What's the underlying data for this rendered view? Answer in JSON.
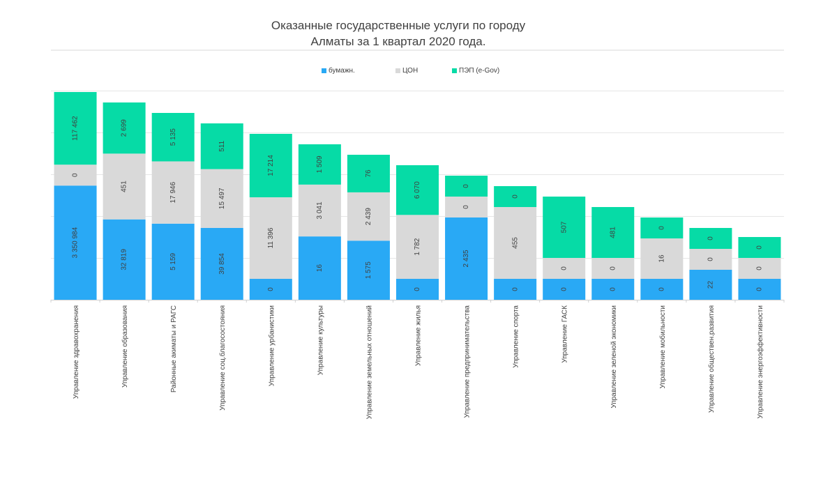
{
  "chart_data": {
    "type": "bar",
    "stacked": true,
    "title_line1": "Оказанные государственные услуги по городу",
    "title_line2": "Алматы за 1 квартал 2020 года.",
    "xlabel": "",
    "ylabel": "",
    "categories": [
      "Управление  здравохранения",
      "Управление образования",
      "Районные акиматы и РАГС",
      "Управление соц.благосостояния",
      "Управление урбанистики",
      "Управление культуры",
      "Управление земельных отношений",
      "Управление жилья",
      "Управление  предпринимательства",
      "Управление спорта",
      "Управление ГАСК",
      "Управление зеленой экономики",
      "Управление мобильности",
      "Управление обществен.развития",
      "Управление энергоэффективности"
    ],
    "series": [
      {
        "name": "бумажн.",
        "color": "#29a9f5",
        "values": [
          3350984,
          32819,
          5159,
          39854,
          0,
          16,
          1575,
          0,
          2435,
          0,
          0,
          0,
          0,
          22,
          0
        ],
        "labels": [
          "3 350 984",
          "32 819",
          "5 159",
          "39 854",
          "0",
          "16",
          "1 575",
          "0",
          "2 435",
          "0",
          "0",
          "0",
          "0",
          "22",
          "0"
        ]
      },
      {
        "name": "ЦОН",
        "color": "#d9d9d9",
        "values": [
          0,
          451,
          17946,
          15497,
          11396,
          3041,
          2439,
          1782,
          0,
          455,
          0,
          0,
          16,
          0,
          0
        ],
        "labels": [
          "0",
          "451",
          "17 946",
          "15 497",
          "11 396",
          "3 041",
          "2 439",
          "1 782",
          "0",
          "455",
          "0",
          "0",
          "16",
          "0",
          "0"
        ]
      },
      {
        "name": "ПЭП (e-Gov)",
        "color": "#06dba6",
        "values": [
          117462,
          2699,
          5135,
          511,
          17214,
          1509,
          76,
          6070,
          0,
          0,
          507,
          481,
          0,
          0,
          0
        ],
        "labels": [
          "117 462",
          "2 699",
          "5 135",
          "511",
          "17 214",
          "1 509",
          "76",
          "6 070",
          "0",
          "0",
          "507",
          "481",
          "0",
          "0",
          "0"
        ]
      }
    ],
    "legend_position": "top",
    "grid": true
  }
}
